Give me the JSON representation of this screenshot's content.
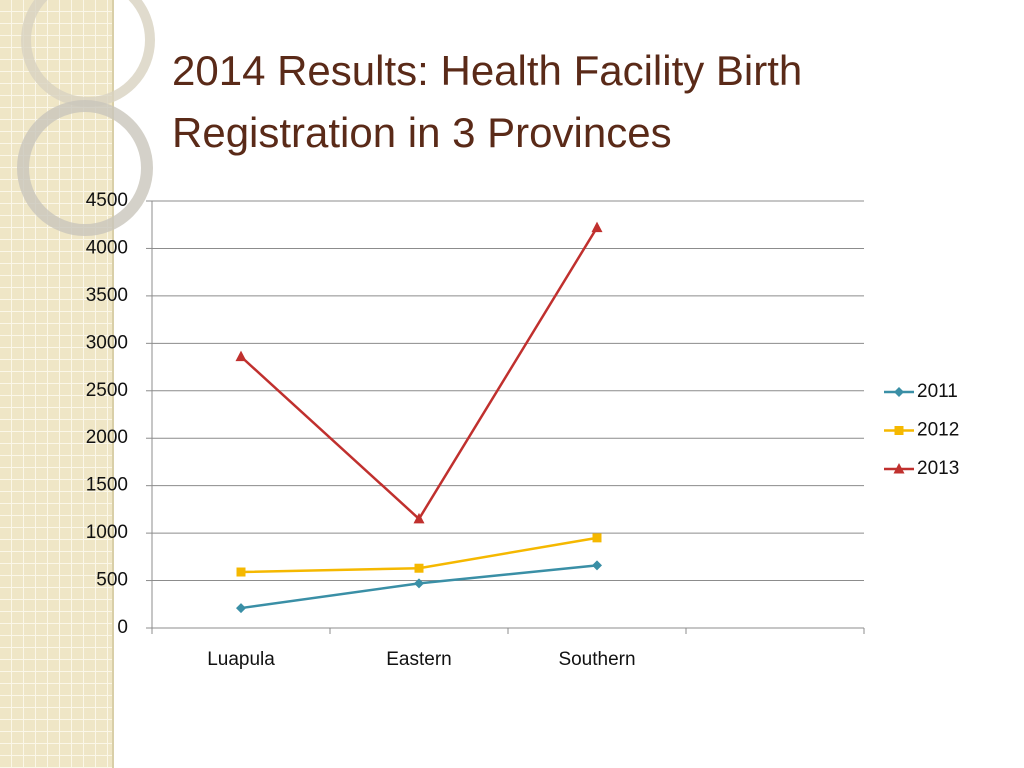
{
  "chart_data": {
    "type": "line",
    "title": "2014 Results: Health Facility Birth Registration in 3 Provinces",
    "categories": [
      "Luapula",
      "Eastern",
      "Southern",
      null
    ],
    "series": [
      {
        "name": "2011",
        "color": "#3a8fa6",
        "marker": "diamond",
        "values": [
          210,
          470,
          660,
          null
        ]
      },
      {
        "name": "2012",
        "color": "#f5b800",
        "marker": "square",
        "values": [
          590,
          630,
          950,
          null
        ]
      },
      {
        "name": "2013",
        "color": "#c0302e",
        "marker": "triangle",
        "values": [
          2860,
          1150,
          4220,
          null
        ]
      }
    ],
    "ylim": [
      0,
      4500
    ],
    "yticks": [
      0,
      500,
      1000,
      1500,
      2000,
      2500,
      3000,
      3500,
      4000,
      4500
    ],
    "grid": true,
    "legend": "right"
  }
}
